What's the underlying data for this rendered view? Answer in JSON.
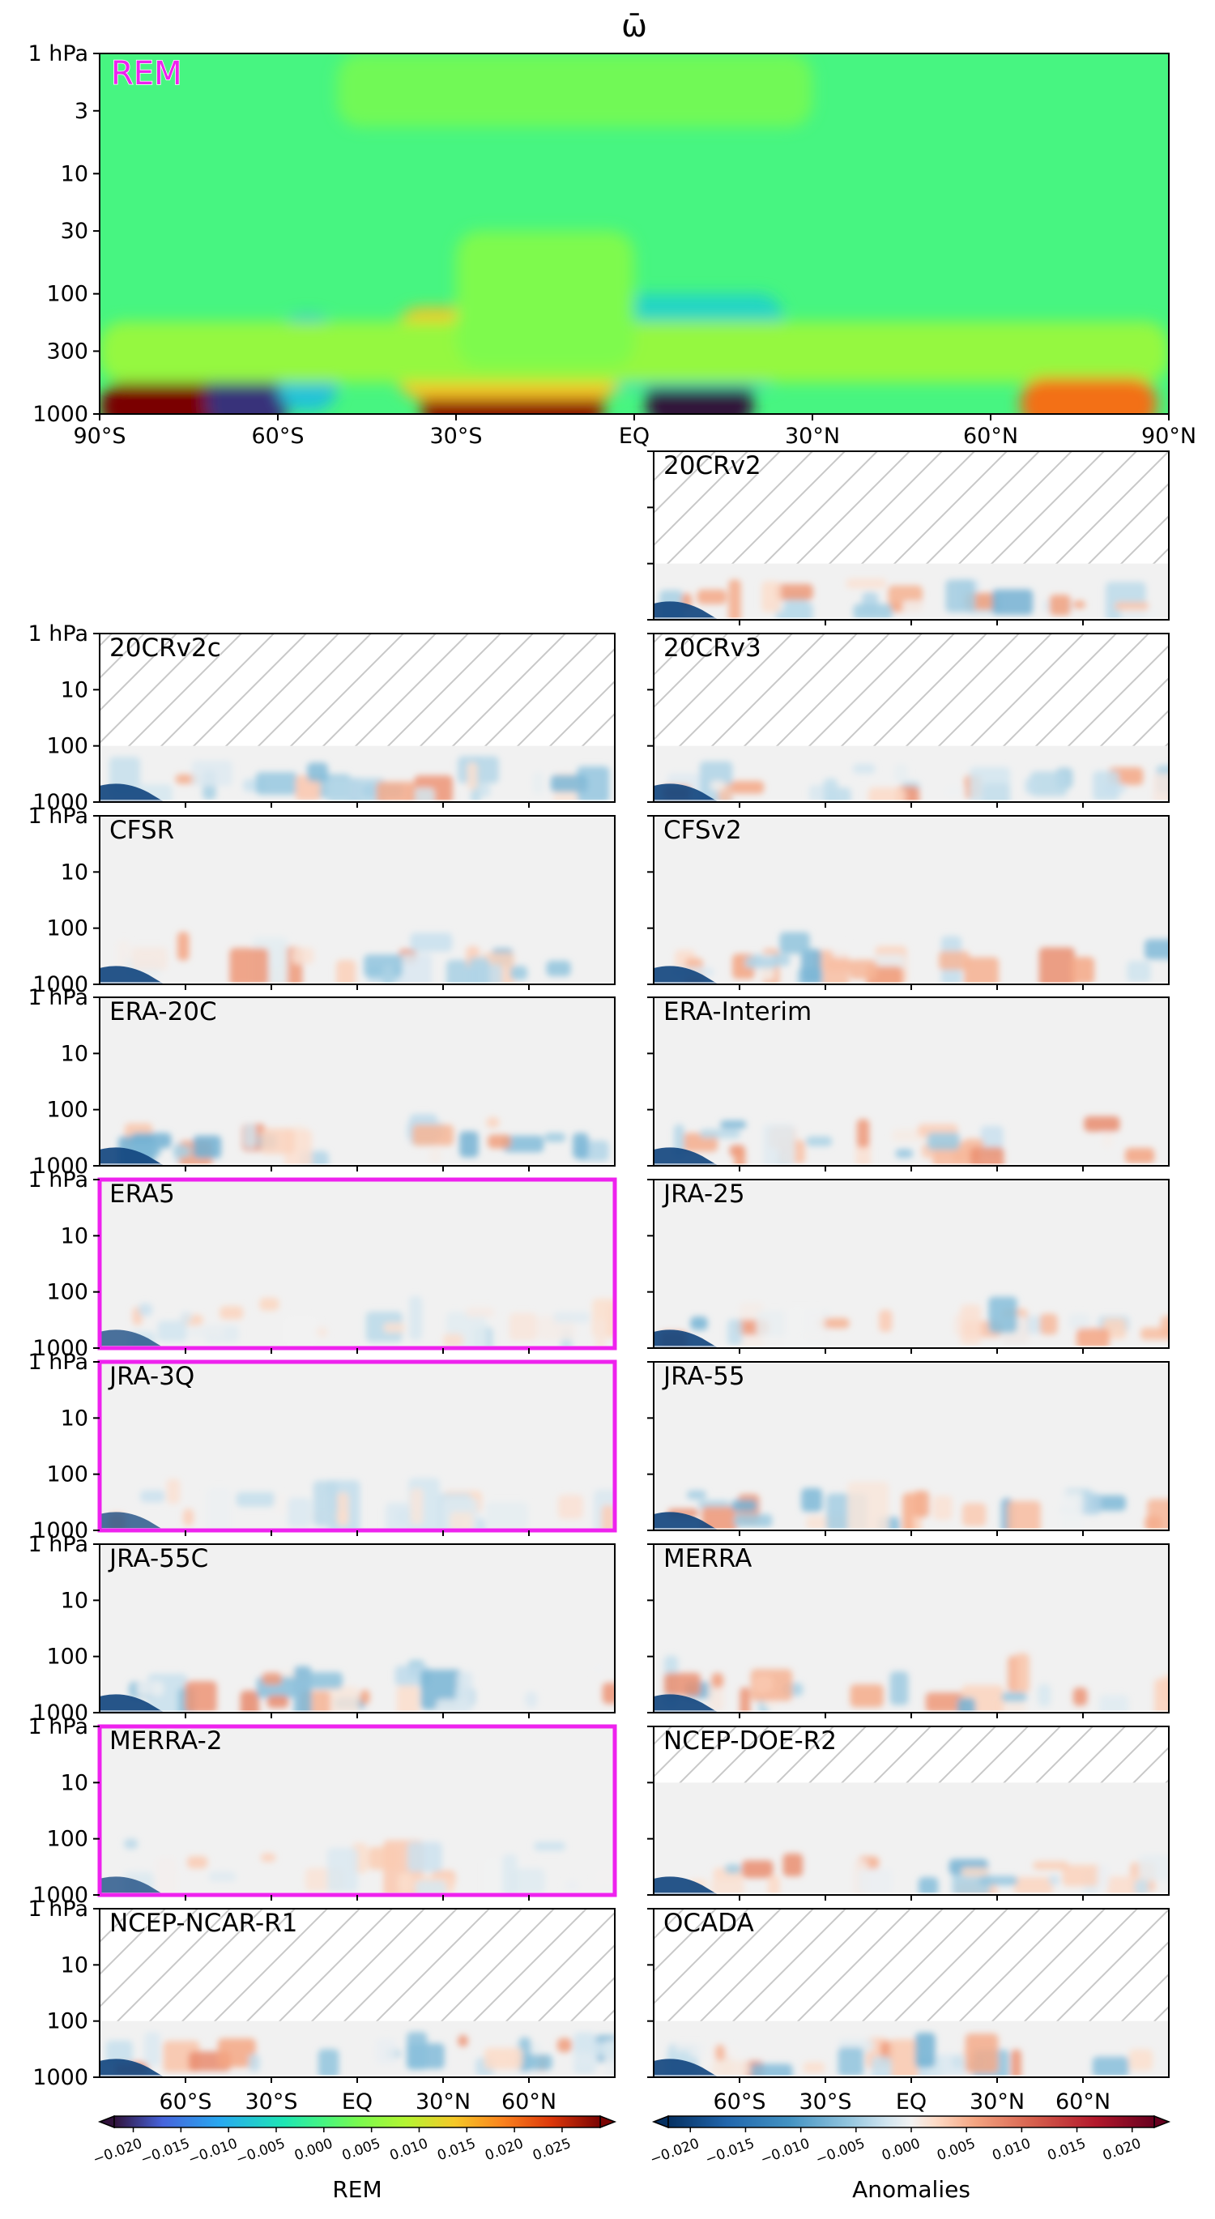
{
  "chart_data": {
    "type": "heatmap",
    "title": "ω̄",
    "x_ticks": [
      "90°S",
      "60°S",
      "30°S",
      "EQ",
      "30°N",
      "60°N",
      "90°N"
    ],
    "x_ticks_bottom": [
      "60°S",
      "30°S",
      "EQ",
      "30°N",
      "60°N"
    ],
    "y_ticks_main": [
      "1 hPa",
      "3",
      "10",
      "30",
      "100",
      "300",
      "1000"
    ],
    "y_ticks_small": [
      "1 hPa",
      "10",
      "100",
      "1000"
    ],
    "xlim": [
      -90,
      90
    ],
    "ylim_hPa": [
      1000,
      1
    ],
    "y_scale": "log",
    "main_panel": {
      "label": "REM",
      "features": [
        {
          "lat": [
            -90,
            -68
          ],
          "p": [
            1000,
            550
          ],
          "value": 0.03
        },
        {
          "lat": [
            -72,
            -58
          ],
          "p": [
            1000,
            350
          ],
          "value": -0.02
        },
        {
          "lat": [
            -60,
            -50
          ],
          "p": [
            700,
            150
          ],
          "value": -0.008
        },
        {
          "lat": [
            -36,
            -5
          ],
          "p": [
            1000,
            220
          ],
          "value": 0.028
        },
        {
          "lat": [
            -40,
            -2
          ],
          "p": [
            550,
            130
          ],
          "value": 0.014
        },
        {
          "lat": [
            2,
            20
          ],
          "p": [
            1000,
            190
          ],
          "value": -0.025
        },
        {
          "lat": [
            -5,
            25
          ],
          "p": [
            450,
            100
          ],
          "value": -0.006
        },
        {
          "lat": [
            -90,
            90
          ],
          "p": [
            400,
            170
          ],
          "value": 0.006
        },
        {
          "lat": [
            65,
            88
          ],
          "p": [
            1000,
            500
          ],
          "value": 0.02
        },
        {
          "lat": [
            -50,
            30
          ],
          "p": [
            3,
            1
          ],
          "value": 0.003
        },
        {
          "lat": [
            -30,
            0
          ],
          "p": [
            300,
            30
          ],
          "value": 0.004
        }
      ]
    },
    "panels": [
      {
        "label": "20CRv2",
        "col": 1,
        "row": 0,
        "top_hPa": 100,
        "highlight": false
      },
      {
        "label": "20CRv2c",
        "col": 0,
        "row": 1,
        "top_hPa": 100,
        "highlight": false
      },
      {
        "label": "20CRv3",
        "col": 1,
        "row": 1,
        "top_hPa": 100,
        "highlight": false
      },
      {
        "label": "CFSR",
        "col": 0,
        "row": 2,
        "top_hPa": 1,
        "highlight": false
      },
      {
        "label": "CFSv2",
        "col": 1,
        "row": 2,
        "top_hPa": 1,
        "highlight": false
      },
      {
        "label": "ERA-20C",
        "col": 0,
        "row": 3,
        "top_hPa": 1,
        "highlight": false
      },
      {
        "label": "ERA-Interim",
        "col": 1,
        "row": 3,
        "top_hPa": 1,
        "highlight": false
      },
      {
        "label": "ERA5",
        "col": 0,
        "row": 4,
        "top_hPa": 1,
        "highlight": true
      },
      {
        "label": "JRA-25",
        "col": 1,
        "row": 4,
        "top_hPa": 1,
        "highlight": false
      },
      {
        "label": "JRA-3Q",
        "col": 0,
        "row": 5,
        "top_hPa": 1,
        "highlight": true
      },
      {
        "label": "JRA-55",
        "col": 1,
        "row": 5,
        "top_hPa": 1,
        "highlight": false
      },
      {
        "label": "JRA-55C",
        "col": 0,
        "row": 6,
        "top_hPa": 1,
        "highlight": false
      },
      {
        "label": "MERRA",
        "col": 1,
        "row": 6,
        "top_hPa": 1,
        "highlight": false
      },
      {
        "label": "MERRA-2",
        "col": 0,
        "row": 7,
        "top_hPa": 1,
        "highlight": true
      },
      {
        "label": "NCEP-DOE-R2",
        "col": 1,
        "row": 7,
        "top_hPa": 10,
        "highlight": false
      },
      {
        "label": "NCEP-NCAR-R1",
        "col": 0,
        "row": 8,
        "top_hPa": 100,
        "highlight": false
      },
      {
        "label": "OCADA",
        "col": 1,
        "row": 8,
        "top_hPa": 100,
        "highlight": false
      }
    ],
    "colorbars": [
      {
        "label": "REM",
        "cmap": "jet",
        "range": [
          -0.022,
          0.029
        ],
        "ticks": [
          "−0.020",
          "−0.015",
          "−0.010",
          "−0.005",
          "0.000",
          "0.005",
          "0.010",
          "0.015",
          "0.020",
          "0.025"
        ],
        "tick_values": [
          -0.02,
          -0.015,
          -0.01,
          -0.005,
          0,
          0.005,
          0.01,
          0.015,
          0.02,
          0.025
        ]
      },
      {
        "label": "Anomalies",
        "cmap": "RdBu_r",
        "range": [
          -0.022,
          0.022
        ],
        "ticks": [
          "−0.020",
          "−0.015",
          "−0.010",
          "−0.005",
          "0.000",
          "0.005",
          "0.010",
          "0.015",
          "0.020"
        ],
        "tick_values": [
          -0.02,
          -0.015,
          -0.01,
          -0.005,
          0,
          0.005,
          0.01,
          0.015,
          0.02
        ]
      }
    ],
    "highlight_color": "#ee22ee"
  }
}
